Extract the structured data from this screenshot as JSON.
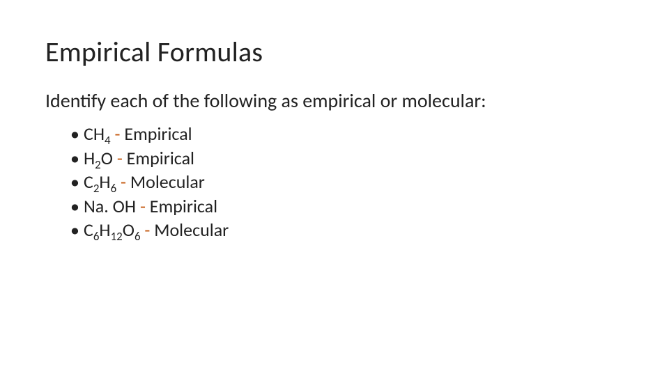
{
  "title": "Empirical Formulas",
  "subtitle": "Identify each of the following as empirical or molecular:",
  "dash_color": "#c55a11",
  "text_color": "#222222",
  "bullets": [
    {
      "formula_html": "CH<sub>4</sub>",
      "classification": "Empirical"
    },
    {
      "formula_html": "H<sub>2</sub>O",
      "classification": "Empirical"
    },
    {
      "formula_html": "C<sub>2</sub>H<sub>6</sub>",
      "classification": "Molecular"
    },
    {
      "formula_html": "Na. OH",
      "classification": "Empirical"
    },
    {
      "formula_html": "C<sub>6</sub>H<sub>12</sub>O<sub>6</sub>",
      "classification": "Molecular"
    }
  ]
}
